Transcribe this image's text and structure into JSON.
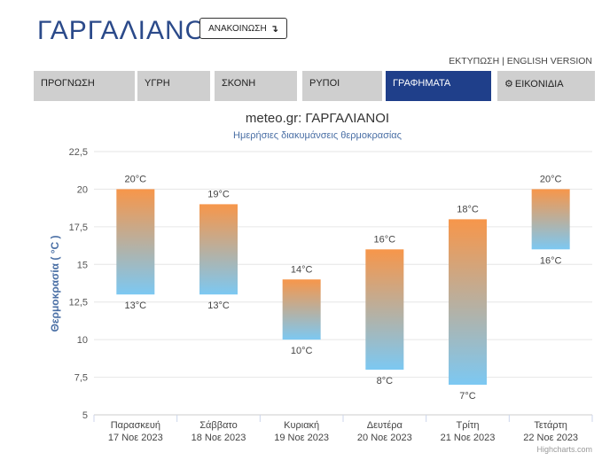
{
  "header": {
    "city_title": "ΓΑΡΓΑΛΙΑΝΟΙ",
    "announce_label": "ΑΝΑΚΟΙΝΩΣΗ",
    "announce_icon": "arrow-down-right-icon",
    "print_label": "ΕΚΤΥΠΩΣΗ",
    "separator": " | ",
    "english_label": "ENGLISH VERSION"
  },
  "tabs": [
    {
      "label": "ΠΡΟΓΝΩΣΗ",
      "active": false
    },
    {
      "label": "ΥΓΡΗ",
      "active": false
    },
    {
      "label": "ΣΚΟΝΗ",
      "active": false
    },
    {
      "label": "ΡΥΠΟΙ",
      "active": false
    },
    {
      "label": "ΓΡΑΦΗΜΑΤΑ",
      "active": true
    },
    {
      "label": "ΕΙΚΟΝΙΔΙΑ",
      "active": false,
      "icon": "gear-icon"
    }
  ],
  "colors": {
    "accent": "#1f3f8a",
    "bar_top": "#f7964a",
    "bar_bottom": "#7cc8f2",
    "ylabel": "#4a6fa5"
  },
  "chart_data": {
    "type": "columnrange",
    "title": "meteo.gr: ΓΑΡΓΑΛΙΑΝΟΙ",
    "subtitle": "Ημερήσιες διακυμάνσεις θερμοκρασίας",
    "ylabel": "Θερμοκρασία ( °C )",
    "ylim": [
      5,
      22.5
    ],
    "yticks": [
      "5",
      "7,5",
      "10",
      "12,5",
      "15",
      "17,5",
      "20",
      "22,5"
    ],
    "yticks_values": [
      5,
      7.5,
      10,
      12.5,
      15,
      17.5,
      20,
      22.5
    ],
    "grid": true,
    "categories": [
      {
        "day": "Παρασκευή",
        "date": "17 Νοε 2023"
      },
      {
        "day": "Σάββατο",
        "date": "18 Νοε 2023"
      },
      {
        "day": "Κυριακή",
        "date": "19 Νοε 2023"
      },
      {
        "day": "Δευτέρα",
        "date": "20 Νοε 2023"
      },
      {
        "day": "Τρίτη",
        "date": "21 Νοε 2023"
      },
      {
        "day": "Τετάρτη",
        "date": "22 Νοε 2023"
      }
    ],
    "low": [
      13,
      13,
      10,
      8,
      7,
      16
    ],
    "high": [
      20,
      19,
      14,
      16,
      18,
      20
    ],
    "low_labels": [
      "13°C",
      "13°C",
      "10°C",
      "8°C",
      "7°C",
      "16°C"
    ],
    "high_labels": [
      "20°C",
      "19°C",
      "14°C",
      "16°C",
      "18°C",
      "20°C"
    ],
    "credits": "Highcharts.com"
  }
}
